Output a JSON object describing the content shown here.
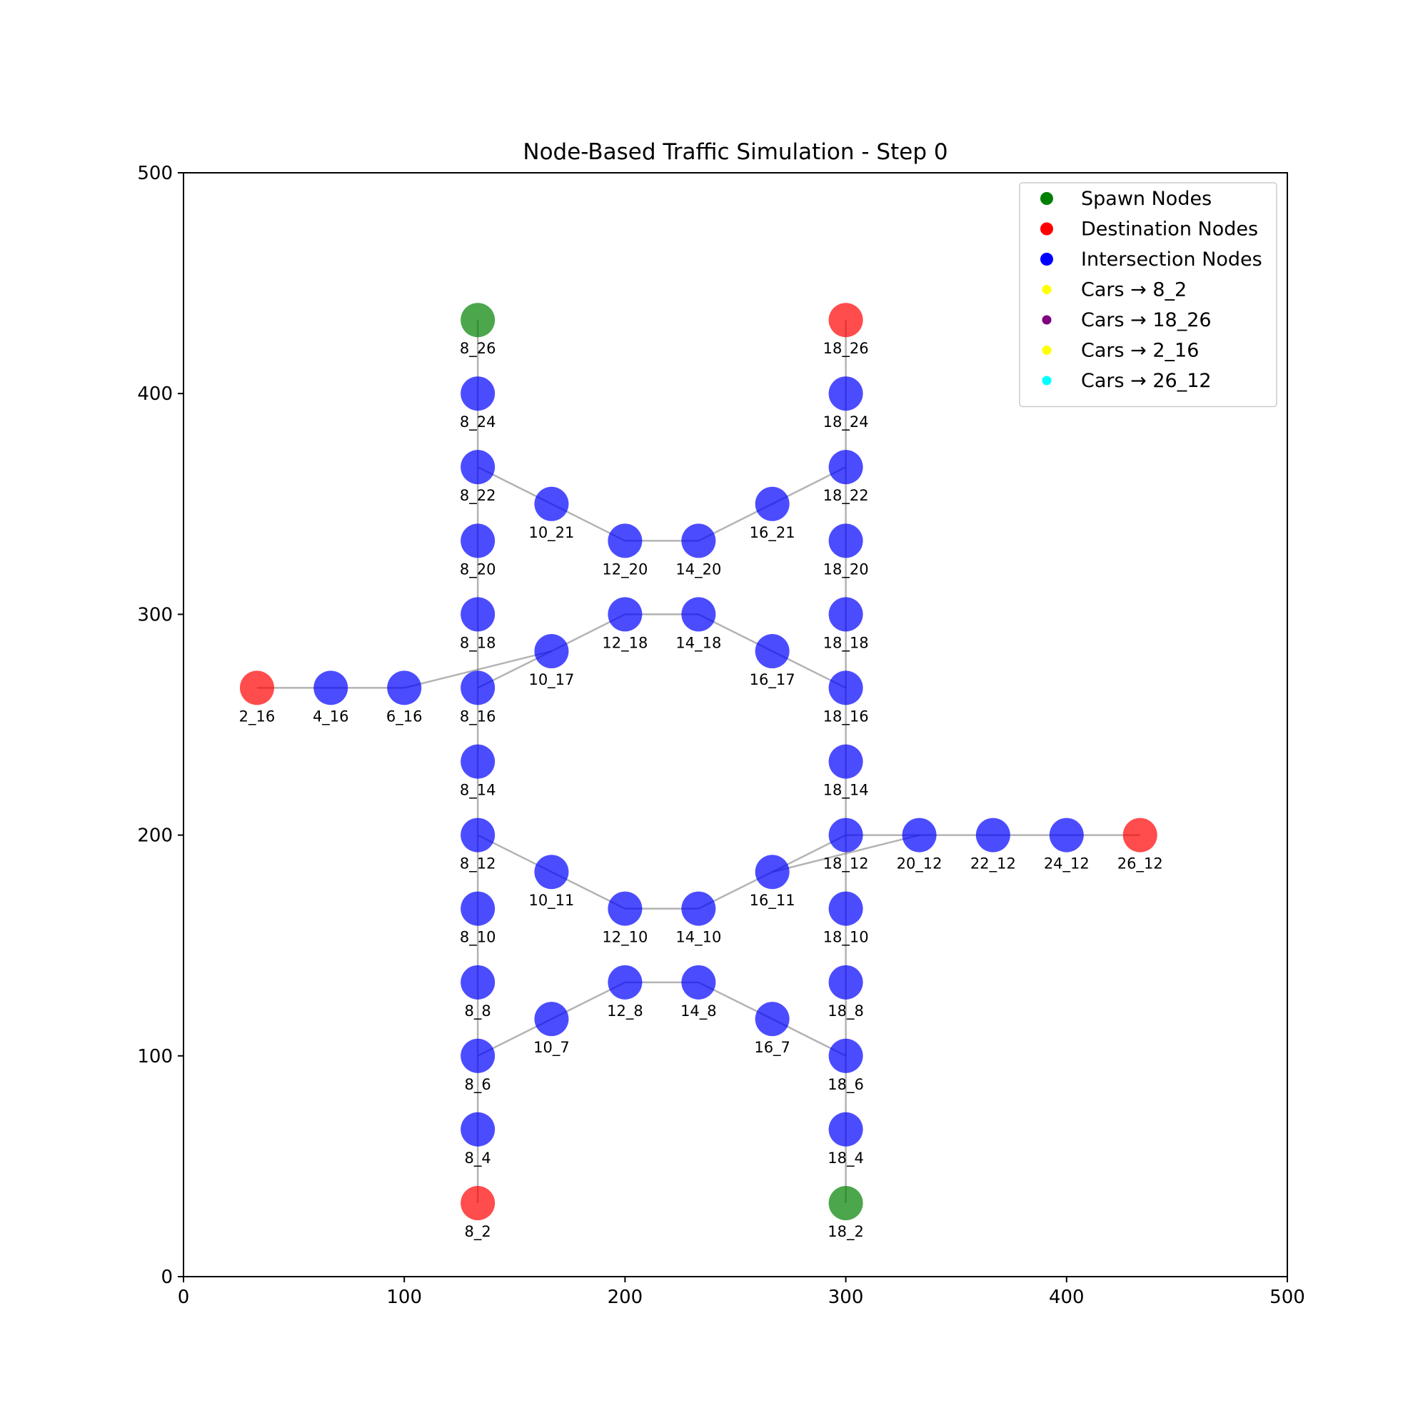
{
  "chart_data": {
    "type": "scatter",
    "title": "Node-Based Traffic Simulation - Step 0",
    "xlabel": "",
    "ylabel": "",
    "xlim": [
      0,
      500
    ],
    "ylim": [
      0,
      500
    ],
    "xticks": [
      0,
      100,
      200,
      300,
      400,
      500
    ],
    "yticks": [
      0,
      100,
      200,
      300,
      400,
      500
    ],
    "grid": false,
    "legend_position": "top-right",
    "colors": {
      "spawn": "#008000",
      "destination": "#ff0000",
      "intersection": "#0000ff",
      "edge": "#808080"
    },
    "legend": [
      {
        "label": "Spawn Nodes",
        "color": "#008000",
        "kind": "node"
      },
      {
        "label": "Destination Nodes",
        "color": "#ff0000",
        "kind": "node"
      },
      {
        "label": "Intersection Nodes",
        "color": "#0000ff",
        "kind": "node"
      },
      {
        "label": "Cars → 8_2",
        "color": "#ffff00",
        "kind": "car"
      },
      {
        "label": "Cars → 18_26",
        "color": "#800080",
        "kind": "car"
      },
      {
        "label": "Cars → 2_16",
        "color": "#ffff00",
        "kind": "car"
      },
      {
        "label": "Cars → 26_12",
        "color": "#00ffff",
        "kind": "car"
      }
    ],
    "nodes": [
      {
        "id": "8_26",
        "x": 133.3,
        "y": 433.3,
        "type": "spawn"
      },
      {
        "id": "18_2",
        "x": 300,
        "y": 33.3,
        "type": "spawn"
      },
      {
        "id": "18_26",
        "x": 300,
        "y": 433.3,
        "type": "destination"
      },
      {
        "id": "8_2",
        "x": 133.3,
        "y": 33.3,
        "type": "destination"
      },
      {
        "id": "2_16",
        "x": 33.3,
        "y": 266.7,
        "type": "destination"
      },
      {
        "id": "26_12",
        "x": 433.3,
        "y": 200,
        "type": "destination"
      },
      {
        "id": "8_24",
        "x": 133.3,
        "y": 400,
        "type": "intersection"
      },
      {
        "id": "8_22",
        "x": 133.3,
        "y": 366.7,
        "type": "intersection"
      },
      {
        "id": "8_20",
        "x": 133.3,
        "y": 333.3,
        "type": "intersection"
      },
      {
        "id": "8_18",
        "x": 133.3,
        "y": 300,
        "type": "intersection"
      },
      {
        "id": "8_16",
        "x": 133.3,
        "y": 266.7,
        "type": "intersection"
      },
      {
        "id": "8_14",
        "x": 133.3,
        "y": 233.3,
        "type": "intersection"
      },
      {
        "id": "8_12",
        "x": 133.3,
        "y": 200,
        "type": "intersection"
      },
      {
        "id": "8_10",
        "x": 133.3,
        "y": 166.7,
        "type": "intersection"
      },
      {
        "id": "8_8",
        "x": 133.3,
        "y": 133.3,
        "type": "intersection"
      },
      {
        "id": "8_6",
        "x": 133.3,
        "y": 100,
        "type": "intersection"
      },
      {
        "id": "8_4",
        "x": 133.3,
        "y": 66.7,
        "type": "intersection"
      },
      {
        "id": "18_24",
        "x": 300,
        "y": 400,
        "type": "intersection"
      },
      {
        "id": "18_22",
        "x": 300,
        "y": 366.7,
        "type": "intersection"
      },
      {
        "id": "18_20",
        "x": 300,
        "y": 333.3,
        "type": "intersection"
      },
      {
        "id": "18_18",
        "x": 300,
        "y": 300,
        "type": "intersection"
      },
      {
        "id": "18_16",
        "x": 300,
        "y": 266.7,
        "type": "intersection"
      },
      {
        "id": "18_14",
        "x": 300,
        "y": 233.3,
        "type": "intersection"
      },
      {
        "id": "18_12",
        "x": 300,
        "y": 200,
        "type": "intersection"
      },
      {
        "id": "18_10",
        "x": 300,
        "y": 166.7,
        "type": "intersection"
      },
      {
        "id": "18_8",
        "x": 300,
        "y": 133.3,
        "type": "intersection"
      },
      {
        "id": "18_6",
        "x": 300,
        "y": 100,
        "type": "intersection"
      },
      {
        "id": "18_4",
        "x": 300,
        "y": 66.7,
        "type": "intersection"
      },
      {
        "id": "10_21",
        "x": 166.7,
        "y": 350,
        "type": "intersection"
      },
      {
        "id": "12_20",
        "x": 200,
        "y": 333.3,
        "type": "intersection"
      },
      {
        "id": "14_20",
        "x": 233.3,
        "y": 333.3,
        "type": "intersection"
      },
      {
        "id": "16_21",
        "x": 266.7,
        "y": 350,
        "type": "intersection"
      },
      {
        "id": "10_17",
        "x": 166.7,
        "y": 283.3,
        "type": "intersection"
      },
      {
        "id": "12_18",
        "x": 200,
        "y": 300,
        "type": "intersection"
      },
      {
        "id": "14_18",
        "x": 233.3,
        "y": 300,
        "type": "intersection"
      },
      {
        "id": "16_17",
        "x": 266.7,
        "y": 283.3,
        "type": "intersection"
      },
      {
        "id": "4_16",
        "x": 66.7,
        "y": 266.7,
        "type": "intersection"
      },
      {
        "id": "6_16",
        "x": 100,
        "y": 266.7,
        "type": "intersection"
      },
      {
        "id": "10_11",
        "x": 166.7,
        "y": 183.3,
        "type": "intersection"
      },
      {
        "id": "12_10",
        "x": 200,
        "y": 166.7,
        "type": "intersection"
      },
      {
        "id": "14_10",
        "x": 233.3,
        "y": 166.7,
        "type": "intersection"
      },
      {
        "id": "16_11",
        "x": 266.7,
        "y": 183.3,
        "type": "intersection"
      },
      {
        "id": "20_12",
        "x": 333.3,
        "y": 200,
        "type": "intersection"
      },
      {
        "id": "22_12",
        "x": 366.7,
        "y": 200,
        "type": "intersection"
      },
      {
        "id": "24_12",
        "x": 400,
        "y": 200,
        "type": "intersection"
      },
      {
        "id": "10_7",
        "x": 166.7,
        "y": 116.7,
        "type": "intersection"
      },
      {
        "id": "12_8",
        "x": 200,
        "y": 133.3,
        "type": "intersection"
      },
      {
        "id": "14_8",
        "x": 233.3,
        "y": 133.3,
        "type": "intersection"
      },
      {
        "id": "16_7",
        "x": 266.7,
        "y": 116.7,
        "type": "intersection"
      }
    ],
    "edges": [
      [
        "8_26",
        "8_24"
      ],
      [
        "8_24",
        "8_22"
      ],
      [
        "8_22",
        "8_20"
      ],
      [
        "8_20",
        "8_18"
      ],
      [
        "8_18",
        "8_16"
      ],
      [
        "8_16",
        "8_14"
      ],
      [
        "8_14",
        "8_12"
      ],
      [
        "8_12",
        "8_10"
      ],
      [
        "8_10",
        "8_8"
      ],
      [
        "8_8",
        "8_6"
      ],
      [
        "8_6",
        "8_4"
      ],
      [
        "8_4",
        "8_2"
      ],
      [
        "18_26",
        "18_24"
      ],
      [
        "18_24",
        "18_22"
      ],
      [
        "18_22",
        "18_20"
      ],
      [
        "18_20",
        "18_18"
      ],
      [
        "18_18",
        "18_16"
      ],
      [
        "18_16",
        "18_14"
      ],
      [
        "18_14",
        "18_12"
      ],
      [
        "18_12",
        "18_10"
      ],
      [
        "18_10",
        "18_8"
      ],
      [
        "18_8",
        "18_6"
      ],
      [
        "18_6",
        "18_4"
      ],
      [
        "18_4",
        "18_2"
      ],
      [
        "8_22",
        "10_21"
      ],
      [
        "10_21",
        "12_20"
      ],
      [
        "12_20",
        "14_20"
      ],
      [
        "14_20",
        "16_21"
      ],
      [
        "16_21",
        "18_22"
      ],
      [
        "8_16",
        "10_17"
      ],
      [
        "10_17",
        "12_18"
      ],
      [
        "12_18",
        "14_18"
      ],
      [
        "14_18",
        "16_17"
      ],
      [
        "16_17",
        "18_16"
      ],
      [
        "2_16",
        "4_16"
      ],
      [
        "4_16",
        "6_16"
      ],
      [
        "6_16",
        "10_17"
      ],
      [
        "8_12",
        "10_11"
      ],
      [
        "10_11",
        "12_10"
      ],
      [
        "12_10",
        "14_10"
      ],
      [
        "14_10",
        "16_11"
      ],
      [
        "16_11",
        "18_12"
      ],
      [
        "16_11",
        "20_12"
      ],
      [
        "18_12",
        "20_12"
      ],
      [
        "20_12",
        "22_12"
      ],
      [
        "22_12",
        "24_12"
      ],
      [
        "24_12",
        "26_12"
      ],
      [
        "8_6",
        "10_7"
      ],
      [
        "10_7",
        "12_8"
      ],
      [
        "12_8",
        "14_8"
      ],
      [
        "14_8",
        "16_7"
      ],
      [
        "16_7",
        "18_6"
      ]
    ]
  }
}
